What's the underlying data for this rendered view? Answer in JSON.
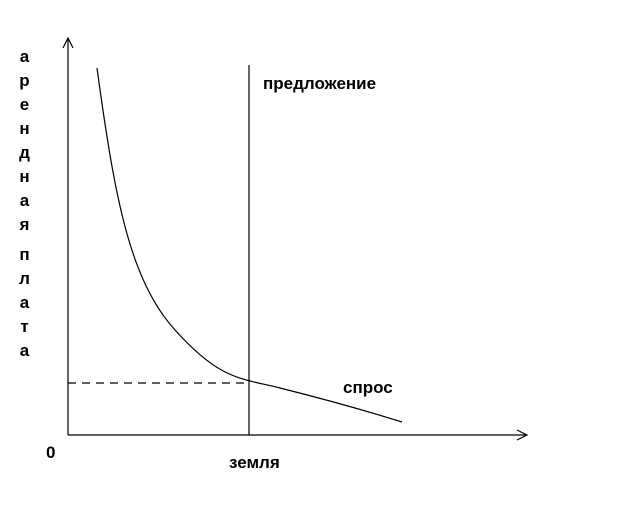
{
  "y_axis_label": [
    "арендная",
    "плата"
  ],
  "x_axis_label": "земля",
  "origin_label": "0",
  "supply_label": "предложение",
  "demand_label": "спрос"
}
